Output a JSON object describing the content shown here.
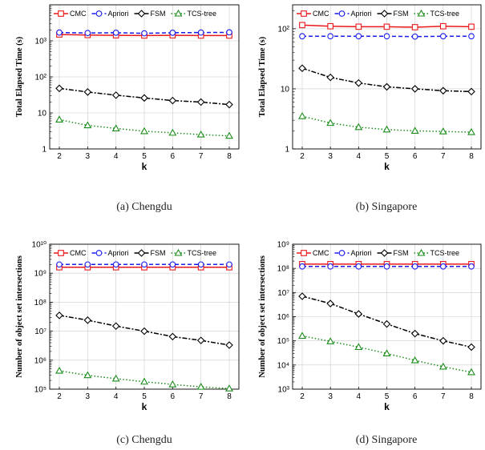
{
  "legend": {
    "labels": [
      "CMC",
      "Apriori",
      "FSM",
      "TCS-tree"
    ]
  },
  "colors": {
    "CMC": "#e8191c",
    "Apriori": "#1a1aee",
    "FSM": "#000000",
    "TCS-tree": "#1a8c1a",
    "grid": "#cccccc"
  },
  "chart_data": [
    {
      "type": "line",
      "caption": "(a)  Chengdu",
      "xlabel": "k",
      "ylabel": "Total Elapsed Time (s)",
      "yscale": "log",
      "ylim": [
        1,
        10000
      ],
      "yticks": [
        "1",
        "10",
        "10²",
        "10³"
      ],
      "x": [
        2,
        3,
        4,
        5,
        6,
        7,
        8
      ],
      "series": [
        {
          "name": "CMC",
          "values": [
            1500,
            1450,
            1420,
            1400,
            1420,
            1400,
            1400
          ]
        },
        {
          "name": "Apriori",
          "values": [
            1700,
            1650,
            1680,
            1620,
            1680,
            1700,
            1720
          ]
        },
        {
          "name": "FSM",
          "values": [
            48,
            38,
            31,
            26,
            22,
            20,
            17
          ]
        },
        {
          "name": "TCS-tree",
          "values": [
            6.5,
            4.5,
            3.7,
            3.1,
            2.8,
            2.5,
            2.3
          ]
        }
      ]
    },
    {
      "type": "line",
      "caption": "(b)  Singapore",
      "xlabel": "k",
      "ylabel": "Total Elapsed Time (s)",
      "yscale": "log",
      "ylim": [
        1,
        250
      ],
      "yticks": [
        "1",
        "10",
        "10²"
      ],
      "x": [
        2,
        3,
        4,
        5,
        6,
        7,
        8
      ],
      "series": [
        {
          "name": "CMC",
          "values": [
            115,
            110,
            108,
            108,
            106,
            110,
            108
          ]
        },
        {
          "name": "Apriori",
          "values": [
            75,
            75,
            75,
            75,
            74,
            75,
            75
          ]
        },
        {
          "name": "FSM",
          "values": [
            22,
            15.5,
            12.5,
            10.8,
            10,
            9.3,
            9
          ]
        },
        {
          "name": "TCS-tree",
          "values": [
            3.5,
            2.7,
            2.3,
            2.1,
            2.0,
            1.95,
            1.9
          ]
        }
      ]
    },
    {
      "type": "line",
      "caption": "(c)  Chengdu",
      "xlabel": "k",
      "ylabel": "Number of object set intersections",
      "yscale": "log",
      "ylim": [
        100000,
        10000000000
      ],
      "yticks": [
        "10⁵",
        "10⁶",
        "10⁷",
        "10⁸",
        "10⁹",
        "10¹⁰"
      ],
      "x": [
        2,
        3,
        4,
        5,
        6,
        7,
        8
      ],
      "series": [
        {
          "name": "CMC",
          "values": [
            1600000000.0,
            1600000000.0,
            1600000000.0,
            1600000000.0,
            1600000000.0,
            1600000000.0,
            1600000000.0
          ]
        },
        {
          "name": "Apriori",
          "values": [
            2000000000.0,
            2000000000.0,
            2000000000.0,
            2000000000.0,
            2000000000.0,
            2000000000.0,
            2000000000.0
          ]
        },
        {
          "name": "FSM",
          "values": [
            35000000.0,
            24000000.0,
            15000000.0,
            10000000.0,
            6500000.0,
            4800000.0,
            3300000.0
          ]
        },
        {
          "name": "TCS-tree",
          "values": [
            430000.0,
            300000.0,
            230000.0,
            180000.0,
            145000.0,
            120000.0,
            105000.0
          ]
        }
      ]
    },
    {
      "type": "line",
      "caption": "(d)  Singapore",
      "xlabel": "k",
      "ylabel": "Number of object set intersections",
      "yscale": "log",
      "ylim": [
        1000,
        1000000000
      ],
      "yticks": [
        "10³",
        "10⁴",
        "10⁵",
        "10⁶",
        "10⁷",
        "10⁸",
        "10⁹"
      ],
      "x": [
        2,
        3,
        4,
        5,
        6,
        7,
        8
      ],
      "series": [
        {
          "name": "CMC",
          "values": [
            150000000.0,
            150000000.0,
            150000000.0,
            150000000.0,
            150000000.0,
            150000000.0,
            150000000.0
          ]
        },
        {
          "name": "Apriori",
          "values": [
            120000000.0,
            120000000.0,
            120000000.0,
            120000000.0,
            120000000.0,
            120000000.0,
            120000000.0
          ]
        },
        {
          "name": "FSM",
          "values": [
            7000000.0,
            3500000.0,
            1300000.0,
            500000.0,
            200000.0,
            100000.0,
            55000.0
          ]
        },
        {
          "name": "TCS-tree",
          "values": [
            160000.0,
            95000.0,
            55000.0,
            30000.0,
            15500.0,
            8500.0,
            5000.0
          ]
        }
      ]
    }
  ]
}
